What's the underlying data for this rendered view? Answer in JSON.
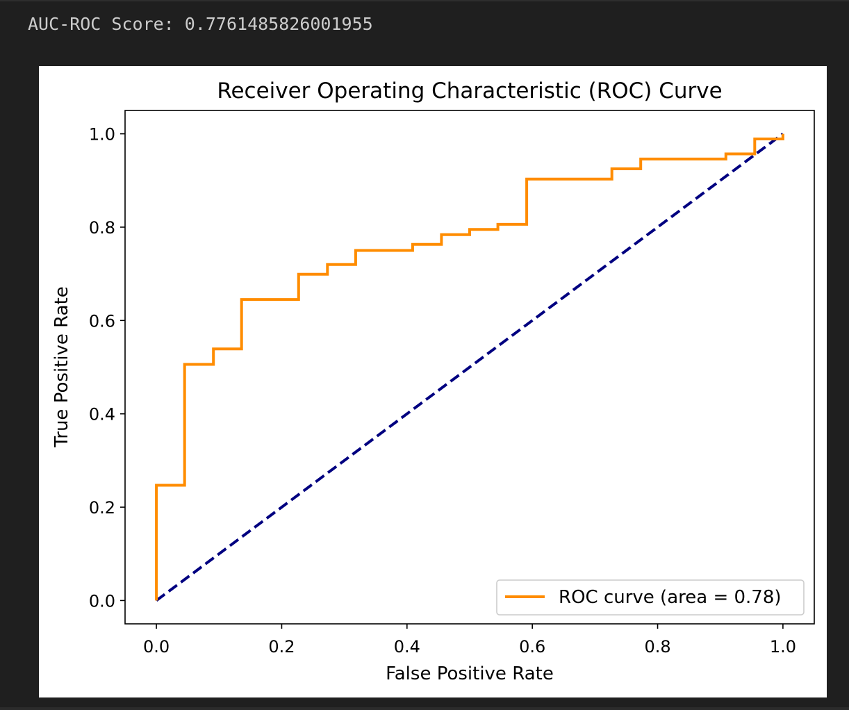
{
  "output": {
    "score_text": "AUC-ROC Score: 0.7761485826001955"
  },
  "chart_data": {
    "type": "line",
    "title": "Receiver Operating Characteristic (ROC) Curve",
    "xlabel": "False Positive Rate",
    "ylabel": "True Positive Rate",
    "xlim": [
      -0.05,
      1.05
    ],
    "ylim": [
      -0.05,
      1.05
    ],
    "grid": false,
    "legend_location": "lower right",
    "x_ticks": [
      "0.0",
      "0.2",
      "0.4",
      "0.6",
      "0.8",
      "1.0"
    ],
    "y_ticks": [
      "0.0",
      "0.2",
      "0.4",
      "0.6",
      "0.8",
      "1.0"
    ],
    "series": [
      {
        "name": "ROC curve (area = 0.78)",
        "color": "#ff8c00",
        "style": "solid",
        "x": [
          0.0,
          0.0,
          0.045,
          0.045,
          0.091,
          0.091,
          0.136,
          0.136,
          0.227,
          0.227,
          0.273,
          0.273,
          0.318,
          0.318,
          0.409,
          0.409,
          0.455,
          0.455,
          0.5,
          0.5,
          0.545,
          0.545,
          0.591,
          0.591,
          0.727,
          0.727,
          0.773,
          0.773,
          0.909,
          0.909,
          0.955,
          0.955,
          1.0,
          1.0
        ],
        "y": [
          0.0,
          0.247,
          0.247,
          0.506,
          0.506,
          0.539,
          0.539,
          0.645,
          0.645,
          0.699,
          0.699,
          0.72,
          0.72,
          0.75,
          0.75,
          0.763,
          0.763,
          0.784,
          0.784,
          0.795,
          0.795,
          0.806,
          0.806,
          0.903,
          0.903,
          0.925,
          0.925,
          0.946,
          0.946,
          0.957,
          0.957,
          0.989,
          0.989,
          1.0
        ]
      },
      {
        "color": "#000080",
        "style": "dashed",
        "x": [
          0.0,
          1.0
        ],
        "y": [
          0.0,
          1.0
        ]
      }
    ]
  }
}
